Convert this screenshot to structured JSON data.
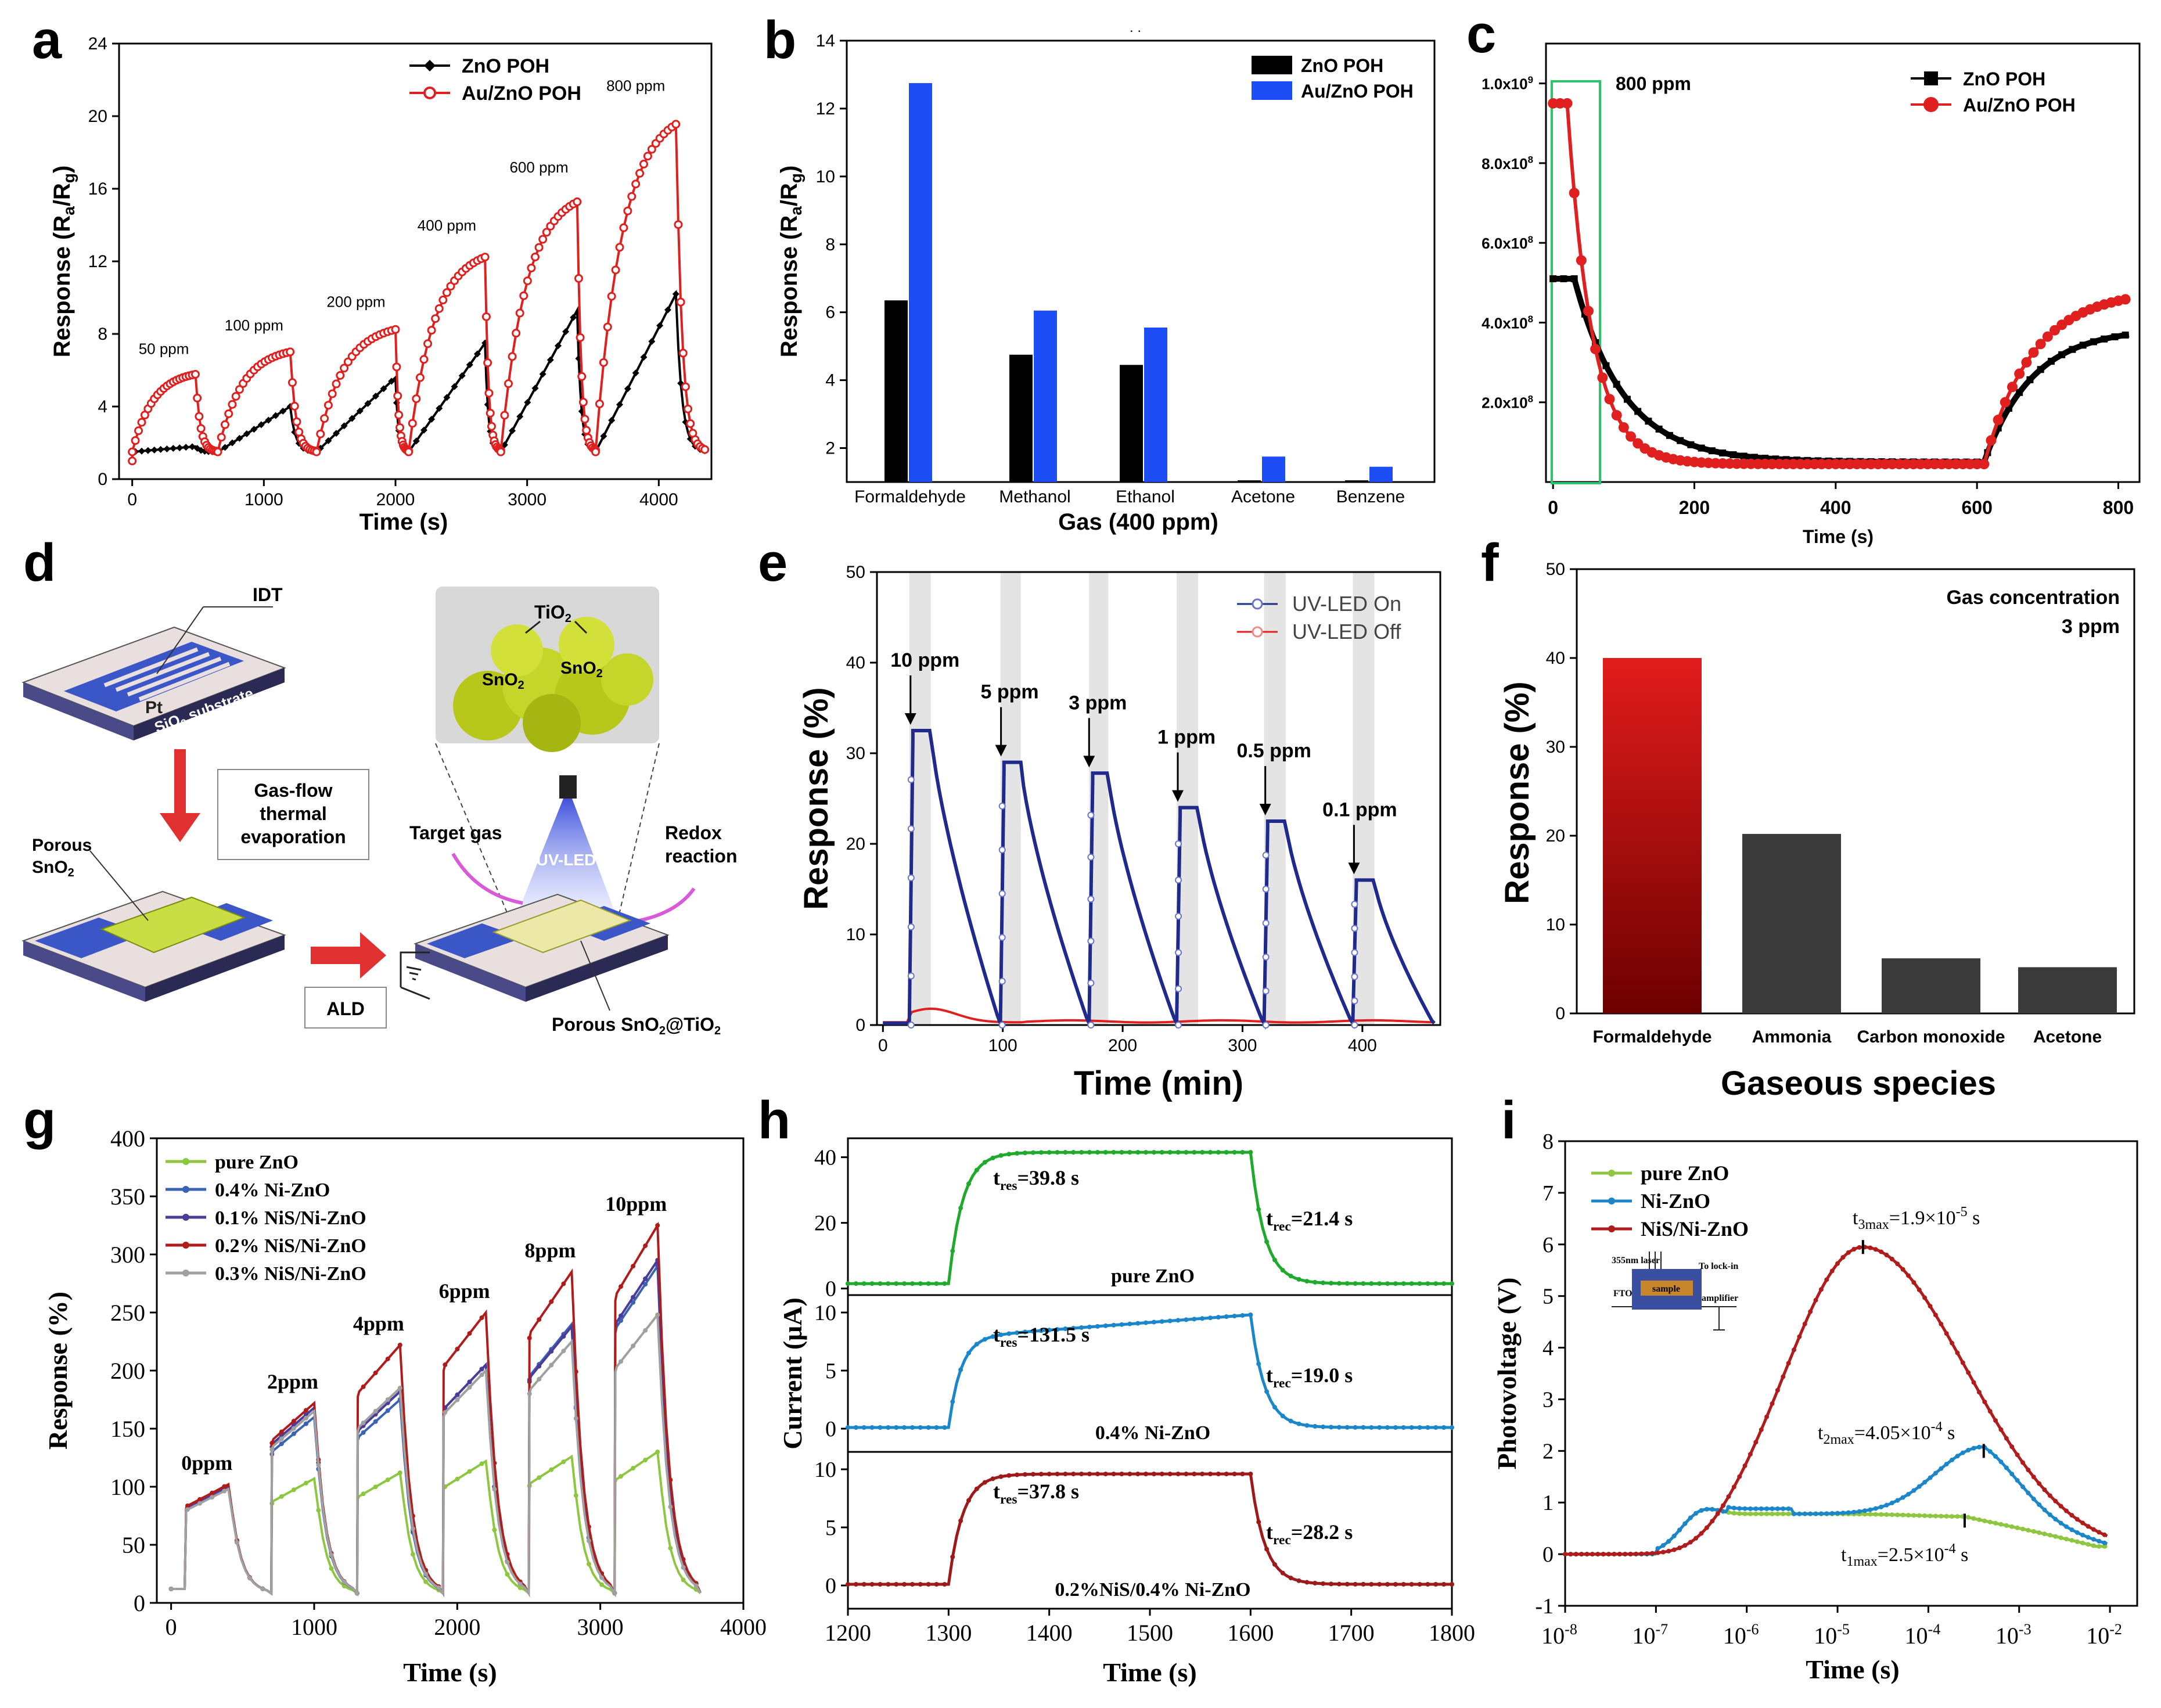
{
  "colors": {
    "black": "#000000",
    "red": "#e01f1f",
    "blue": "#1c4df5",
    "green": "#2ec46a",
    "navy": "#1f2a8c",
    "lightred": "#ef6a6a",
    "darkbar": "#3a3a3a",
    "gradtop": "#e21c1c",
    "gradbot": "#6d0000",
    "lime": "#8dc63f",
    "gnblue": "#3b63b3",
    "purple": "#4b3c9a",
    "darkred": "#b01c1c",
    "gray": "#a0a0a0",
    "cgreen": "#1faa2e",
    "cblue": "#1b86c9",
    "cdarkred": "#9c1a1a"
  },
  "panels": {
    "a": {
      "letter": "a",
      "xlabel": "Time (s)",
      "ylabel": "Response (R_a/R_g)",
      "yticks": [
        "0",
        "4",
        "8",
        "12",
        "16",
        "20",
        "24"
      ],
      "xticks": [
        "0",
        "1000",
        "2000",
        "3000",
        "4000"
      ],
      "legend": [
        "ZnO POH",
        "Au/ZnO POH"
      ],
      "annotations": [
        "50 ppm",
        "100 ppm",
        "200 ppm",
        "400 ppm",
        "600 ppm",
        "800 ppm"
      ]
    },
    "b": {
      "letter": "b",
      "xlabel": "Gas (400 ppm)",
      "ylabel": "Response (R_a/R_g)",
      "yticks": [
        "2",
        "4",
        "6",
        "8",
        "10",
        "12",
        "14"
      ],
      "categories": [
        "Formaldehyde",
        "Methanol",
        "Ethanol",
        "Acetone",
        "Benzene"
      ],
      "legend": [
        "ZnO POH",
        "Au/ZnO POH"
      ],
      "top_mark": ". ."
    },
    "c": {
      "letter": "c",
      "xlabel": "Time (s)",
      "yticks": [
        "2.0x10^8",
        "4.0x10^8",
        "6.0x10^8",
        "8.0x10^8",
        "1.0x10^9"
      ],
      "xticks": [
        "0",
        "200",
        "400",
        "600",
        "800"
      ],
      "legend": [
        "ZnO POH",
        "Au/ZnO POH"
      ],
      "annotation": "800 ppm"
    },
    "d": {
      "letter": "d",
      "labels": {
        "idt": "IDT",
        "pt": "Pt",
        "substrate": "SiO2 substrate",
        "tio2": "TiO2",
        "sno2a": "SnO2",
        "sno2b": "SnO2",
        "gasflow": "Gas-flow\nthermal\nevaporation",
        "porous": "Porous\nSnO2",
        "target": "Target gas",
        "redox": "Redox\nreaction",
        "uvled": "UV-LED",
        "ald": "ALD",
        "final": "Porous SnO2@TiO2"
      }
    },
    "e": {
      "letter": "e",
      "xlabel": "Time (min)",
      "ylabel": "Response (%)",
      "yticks": [
        "0",
        "10",
        "20",
        "30",
        "40",
        "50"
      ],
      "xticks": [
        "0",
        "100",
        "200",
        "300",
        "400"
      ],
      "legend": [
        "UV-LED On",
        "UV-LED Off"
      ],
      "annotations": [
        "10 ppm",
        "5 ppm",
        "3 ppm",
        "1 ppm",
        "0.5 ppm",
        "0.1 ppm"
      ]
    },
    "f": {
      "letter": "f",
      "xlabel": "Gaseous species",
      "ylabel": "Response (%)",
      "yticks": [
        "0",
        "10",
        "20",
        "30",
        "40",
        "50"
      ],
      "categories": [
        "Formaldehyde",
        "Ammonia",
        "Carbon monoxide",
        "Acetone"
      ],
      "note": "Gas concentration\n3 ppm"
    },
    "g": {
      "letter": "g",
      "xlabel": "Time (s)",
      "ylabel": "Response (%)",
      "yticks": [
        "0",
        "50",
        "100",
        "150",
        "200",
        "250",
        "300",
        "350",
        "400"
      ],
      "xticks": [
        "0",
        "1000",
        "2000",
        "3000",
        "4000"
      ],
      "legend": [
        "pure ZnO",
        "0.4% Ni-ZnO",
        "0.1% NiS/Ni-ZnO",
        "0.2% NiS/Ni-ZnO",
        "0.3% NiS/Ni-ZnO"
      ],
      "annotations": [
        "0ppm",
        "2ppm",
        "4ppm",
        "6ppm",
        "8ppm",
        "10ppm"
      ]
    },
    "h": {
      "letter": "h",
      "xlabel": "Time (s)",
      "ylabel": "Current (μA)",
      "xticks": [
        "1200",
        "1300",
        "1400",
        "1500",
        "1600",
        "1700",
        "1800"
      ],
      "subplots": [
        {
          "label": "pure ZnO",
          "tres": "t_res=39.8 s",
          "trec": "t_rec=21.4 s",
          "yticks": [
            "0",
            "20",
            "40"
          ]
        },
        {
          "label": "0.4% Ni-ZnO",
          "tres": "t_res=131.5 s",
          "trec": "t_rec=19.0 s",
          "yticks": [
            "0",
            "5",
            "10"
          ]
        },
        {
          "label": "0.2%NiS/0.4% Ni-ZnO",
          "tres": "t_res=37.8 s",
          "trec": "t_rec=28.2 s",
          "yticks": [
            "0",
            "5",
            "10"
          ]
        }
      ]
    },
    "i": {
      "letter": "i",
      "xlabel": "Time (s)",
      "ylabel": "Photovoltage (V)",
      "yticks": [
        "-1",
        "0",
        "1",
        "2",
        "3",
        "4",
        "5",
        "6",
        "7",
        "8"
      ],
      "xticks": [
        "10^-8",
        "10^-7",
        "10^-6",
        "10^-5",
        "10^-4",
        "10^-3",
        "10^-2"
      ],
      "legend": [
        "pure ZnO",
        "Ni-ZnO",
        "NiS/Ni-ZnO"
      ],
      "annotations": {
        "t3": "t_3max=1.9×10^-5 s",
        "t2": "t_2max=4.05×10^-4 s",
        "t1": "t_1max=2.5×10^-4 s"
      },
      "inset": {
        "laser": "355nm laser",
        "lockin": "To lock-in",
        "fto": "FTO",
        "sample": "sample",
        "amp": "amplifier"
      }
    }
  },
  "chart_data": [
    {
      "panel": "a",
      "type": "line",
      "title": "",
      "xlabel": "Time (s)",
      "ylabel": "Response (Ra/Rg)",
      "xlim": [
        -100,
        4400
      ],
      "ylim": [
        0,
        24
      ],
      "pulses": [
        {
          "t0": 0,
          "t1": 480,
          "zno": 1.8,
          "au": 6.0,
          "label": "50 ppm"
        },
        {
          "t0": 650,
          "t1": 1200,
          "zno": 4.0,
          "au": 7.3,
          "label": "100 ppm"
        },
        {
          "t0": 1400,
          "t1": 2000,
          "zno": 5.6,
          "au": 8.6,
          "label": "200 ppm"
        },
        {
          "t0": 2100,
          "t1": 2680,
          "zno": 7.5,
          "au": 12.8,
          "label": "400 ppm"
        },
        {
          "t0": 2800,
          "t1": 3380,
          "zno": 9.3,
          "au": 16.0,
          "label": "600 ppm"
        },
        {
          "t0": 3520,
          "t1": 4130,
          "zno": 10.2,
          "au": 20.5,
          "label": "800 ppm"
        }
      ],
      "series": [
        {
          "name": "ZnO POH"
        },
        {
          "name": "Au/ZnO POH"
        }
      ]
    },
    {
      "panel": "b",
      "type": "bar",
      "xlabel": "Gas (400 ppm)",
      "ylabel": "Response (Ra/Rg)",
      "ylim": [
        1,
        14
      ],
      "categories": [
        "Formaldehyde",
        "Methanol",
        "Ethanol",
        "Acetone",
        "Benzene"
      ],
      "series": [
        {
          "name": "ZnO POH",
          "values": [
            6.35,
            4.75,
            4.45,
            1.05,
            1.05
          ]
        },
        {
          "name": "Au/ZnO POH",
          "values": [
            12.75,
            6.05,
            5.55,
            1.75,
            1.45
          ]
        }
      ]
    },
    {
      "panel": "c",
      "type": "line",
      "xlabel": "Time (s)",
      "ylabel": "",
      "xlim": [
        -10,
        830
      ],
      "ylim": [
        0,
        1100000000.0
      ],
      "series": [
        {
          "name": "ZnO POH",
          "start": 510000000.0,
          "flat_until": 30,
          "min": 50000000.0,
          "end": 370000000.0
        },
        {
          "name": "Au/ZnO POH",
          "start": 950000000.0,
          "flat_until": 20,
          "min": 45000000.0,
          "end": 460000000.0
        }
      ]
    },
    {
      "panel": "e",
      "type": "line",
      "xlabel": "Time (min)",
      "ylabel": "Response (%)",
      "xlim": [
        -5,
        465
      ],
      "ylim": [
        0,
        50
      ],
      "pulses": [
        {
          "t0": 22,
          "t1": 40,
          "peak": 32.5,
          "label": "10 ppm"
        },
        {
          "t0": 98,
          "t1": 115,
          "peak": 29.0,
          "label": "5 ppm"
        },
        {
          "t0": 172,
          "t1": 188,
          "peak": 27.8,
          "label": "3 ppm"
        },
        {
          "t0": 245,
          "t1": 263,
          "peak": 24.0,
          "label": "1 ppm"
        },
        {
          "t0": 318,
          "t1": 336,
          "peak": 22.5,
          "label": "0.5 ppm"
        },
        {
          "t0": 392,
          "t1": 410,
          "peak": 16.0,
          "label": "0.1 ppm"
        }
      ],
      "series": [
        {
          "name": "UV-LED On"
        },
        {
          "name": "UV-LED Off"
        }
      ]
    },
    {
      "panel": "f",
      "type": "bar",
      "xlabel": "Gaseous species",
      "ylabel": "Response (%)",
      "ylim": [
        0,
        50
      ],
      "categories": [
        "Formaldehyde",
        "Ammonia",
        "Carbon monoxide",
        "Acetone"
      ],
      "values": [
        40,
        20.2,
        6.2,
        5.2
      ]
    },
    {
      "panel": "g",
      "type": "line",
      "xlabel": "Time (s)",
      "ylabel": "Response (%)",
      "xlim": [
        -100,
        4000
      ],
      "ylim": [
        0,
        400
      ],
      "pulses": [
        {
          "t0": 100,
          "t1": 400,
          "label": "0ppm"
        },
        {
          "t0": 700,
          "t1": 1000,
          "label": "2ppm"
        },
        {
          "t0": 1300,
          "t1": 1600,
          "label": "4ppm"
        },
        {
          "t0": 1900,
          "t1": 2200,
          "label": "6ppm"
        },
        {
          "t0": 2500,
          "t1": 2800,
          "label": "8ppm"
        },
        {
          "t0": 3100,
          "t1": 3400,
          "label": "10ppm"
        }
      ],
      "series": [
        {
          "name": "pure ZnO",
          "peaks": [
            100,
            107,
            112,
            122,
            126,
            130
          ]
        },
        {
          "name": "0.4% Ni-ZnO",
          "peaks": [
            100,
            160,
            175,
            205,
            240,
            290
          ]
        },
        {
          "name": "0.1% NiS/Ni-ZnO",
          "peaks": [
            100,
            168,
            182,
            205,
            238,
            295
          ]
        },
        {
          "name": "0.2% NiS/Ni-ZnO",
          "peaks": [
            102,
            172,
            222,
            250,
            285,
            325
          ]
        },
        {
          "name": "0.3% NiS/Ni-ZnO",
          "peaks": [
            98,
            165,
            185,
            200,
            225,
            248
          ]
        }
      ]
    },
    {
      "panel": "h",
      "type": "line",
      "xlabel": "Time (s)",
      "ylabel": "Current (μA)",
      "xlim": [
        1200,
        1800
      ],
      "series": [
        {
          "name": "pure ZnO",
          "on": 1300,
          "off": 1600,
          "base": 1.5,
          "plateau": 41.5,
          "ymax": 44
        },
        {
          "name": "0.4% Ni-ZnO",
          "on": 1300,
          "off": 1600,
          "base": 0.1,
          "plateau": 9.8,
          "ymax": 11
        },
        {
          "name": "0.2%NiS/0.4% Ni-ZnO",
          "on": 1300,
          "off": 1600,
          "base": 0.1,
          "plateau": 9.6,
          "ymax": 11
        }
      ]
    },
    {
      "panel": "i",
      "type": "line",
      "xlabel": "Time (s)",
      "ylabel": "Photovoltage (V)",
      "xlim": [
        -8,
        -1.7
      ],
      "ylim": [
        -1,
        8
      ],
      "series": [
        {
          "name": "pure ZnO",
          "peak_logt": -3.6,
          "peak": 0.65
        },
        {
          "name": "Ni-ZnO",
          "peak_logt": -3.39,
          "peak": 2.0
        },
        {
          "name": "NiS/Ni-ZnO",
          "peak_logt": -4.72,
          "peak": 5.95
        }
      ]
    }
  ]
}
